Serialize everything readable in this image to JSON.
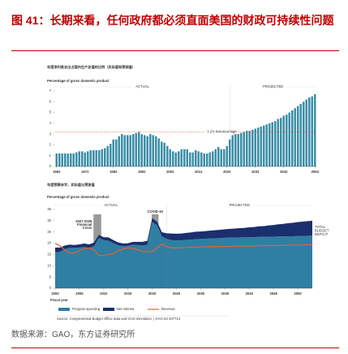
{
  "header": {
    "title": "图 41：长期来看，任何政府都必须直面美国的财政可持续性问题"
  },
  "chart_data": [
    {
      "type": "bar",
      "title": "年度净利息支出占国内生产总值的比例（实际值和预测值）",
      "subtitle": "Percentage of gross domestic product",
      "period_labels": [
        "ACTUAL",
        "PROJECTED"
      ],
      "projection_start": 2023,
      "reference": {
        "value": 3.2,
        "label": "3.2% historical high"
      },
      "color": "#3d8ea8",
      "x": [
        1962,
        1963,
        1964,
        1965,
        1966,
        1967,
        1968,
        1969,
        1970,
        1971,
        1972,
        1973,
        1974,
        1975,
        1976,
        1977,
        1978,
        1979,
        1980,
        1981,
        1982,
        1983,
        1984,
        1985,
        1986,
        1987,
        1988,
        1989,
        1990,
        1991,
        1992,
        1993,
        1994,
        1995,
        1996,
        1997,
        1998,
        1999,
        2000,
        2001,
        2002,
        2003,
        2004,
        2005,
        2006,
        2007,
        2008,
        2009,
        2010,
        2011,
        2012,
        2013,
        2014,
        2015,
        2016,
        2017,
        2018,
        2019,
        2020,
        2021,
        2022,
        2023,
        2024,
        2025,
        2026,
        2027,
        2028,
        2029,
        2030,
        2031,
        2032,
        2033,
        2034,
        2035,
        2036,
        2037,
        2038,
        2039,
        2040,
        2041,
        2042,
        2043,
        2044,
        2045,
        2046,
        2047,
        2048,
        2049,
        2050,
        2051,
        2052,
        2053
      ],
      "values": [
        1.2,
        1.2,
        1.2,
        1.2,
        1.2,
        1.2,
        1.2,
        1.3,
        1.4,
        1.4,
        1.3,
        1.4,
        1.5,
        1.5,
        1.5,
        1.5,
        1.6,
        1.7,
        1.9,
        2.1,
        2.5,
        2.5,
        2.8,
        3.0,
        2.9,
        2.9,
        2.9,
        3.0,
        3.1,
        3.2,
        3.0,
        2.9,
        2.8,
        3.0,
        2.9,
        2.8,
        2.6,
        2.3,
        2.2,
        1.9,
        1.6,
        1.4,
        1.3,
        1.4,
        1.6,
        1.6,
        1.6,
        1.3,
        1.3,
        1.5,
        1.4,
        1.3,
        1.2,
        1.2,
        1.3,
        1.4,
        1.6,
        1.8,
        1.6,
        1.6,
        1.9,
        2.5,
        2.9,
        3.0,
        3.0,
        3.1,
        3.2,
        3.3,
        3.3,
        3.4,
        3.5,
        3.6,
        3.7,
        3.8,
        3.9,
        4.0,
        4.1,
        4.2,
        4.4,
        4.5,
        4.7,
        4.8,
        5.0,
        5.2,
        5.4,
        5.6,
        5.8,
        6.0,
        6.2,
        6.4,
        6.5,
        6.7
      ],
      "xlim": [
        1961.5,
        2053.5
      ],
      "xticks": [
        1962,
        1972,
        1982,
        1992,
        2002,
        2012,
        2022,
        2032,
        2042,
        2053
      ],
      "ylim": [
        0,
        7
      ],
      "yticks": [
        0,
        1,
        2,
        3,
        4,
        5,
        6,
        7
      ]
    },
    {
      "type": "area",
      "title": "年度预算赤字，实际值与预测值",
      "subtitle": "Percentage of gross domestic product",
      "period_labels": [
        "ACTUAL",
        "PROJECTED"
      ],
      "projection_start": 2023,
      "shading": [
        {
          "label": [
            "2007-2009",
            "Financial",
            "Crisis"
          ],
          "start": 2007.9,
          "end": 2009.5
        },
        {
          "label": [
            "COVID-19"
          ],
          "start": 2019.9,
          "end": 2021.3
        }
      ],
      "side_label": [
        "TOTAL",
        "BUDGET",
        "DEFICIT"
      ],
      "x_label": "Fiscal year",
      "source": "Source: Congressional Budget Office data and GAO simulation.  |  GAO-23-107714",
      "x": [
        2000,
        2001,
        2002,
        2003,
        2004,
        2005,
        2006,
        2007,
        2008,
        2009,
        2010,
        2011,
        2012,
        2013,
        2014,
        2015,
        2016,
        2017,
        2018,
        2019,
        2020,
        2021,
        2022,
        2023,
        2024,
        2025,
        2026,
        2027,
        2028,
        2029,
        2030,
        2031,
        2032,
        2033,
        2034,
        2035,
        2036,
        2037,
        2038,
        2039,
        2040,
        2041,
        2042,
        2043,
        2044,
        2045,
        2046,
        2047,
        2048,
        2049,
        2050,
        2051,
        2052,
        2053
      ],
      "series": [
        {
          "name": "Program spending",
          "color": "#2f7fa3",
          "kind": "area",
          "values": [
            15.9,
            16.2,
            17.4,
            18.0,
            17.9,
            18.1,
            18.3,
            17.9,
            18.7,
            22.4,
            21.4,
            21.1,
            20.0,
            19.1,
            18.7,
            18.8,
            19.3,
            19.2,
            19.0,
            19.3,
            29.5,
            28.0,
            23.0,
            21.9,
            21.4,
            21.2,
            21.3,
            21.5,
            21.6,
            21.8,
            21.9,
            22.0,
            22.1,
            22.2,
            22.3,
            22.4,
            22.5,
            22.5,
            22.6,
            22.6,
            22.7,
            22.7,
            22.8,
            22.8,
            22.9,
            22.9,
            23.0,
            23.0,
            23.1,
            23.1,
            23.2,
            23.2,
            23.3,
            23.3
          ]
        },
        {
          "name": "Net interest",
          "color": "#1b2f6e",
          "kind": "area",
          "values": [
            2.2,
            1.9,
            1.6,
            1.4,
            1.3,
            1.4,
            1.6,
            1.6,
            1.6,
            1.3,
            1.3,
            1.5,
            1.4,
            1.3,
            1.2,
            1.2,
            1.3,
            1.4,
            1.6,
            1.8,
            1.6,
            1.6,
            1.9,
            2.5,
            2.9,
            3.0,
            3.0,
            3.1,
            3.2,
            3.3,
            3.3,
            3.4,
            3.5,
            3.6,
            3.7,
            3.8,
            3.9,
            4.0,
            4.1,
            4.2,
            4.4,
            4.5,
            4.7,
            4.8,
            5.0,
            5.2,
            5.4,
            5.6,
            5.8,
            6.0,
            6.2,
            6.4,
            6.5,
            6.7
          ]
        },
        {
          "name": "Revenue",
          "color": "#e8612c",
          "kind": "line",
          "values": [
            20.0,
            18.8,
            17.0,
            15.7,
            15.6,
            16.7,
            17.6,
            17.9,
            17.1,
            14.6,
            14.6,
            15.0,
            15.3,
            16.7,
            17.4,
            18.0,
            17.6,
            17.2,
            16.3,
            16.3,
            16.2,
            17.9,
            19.6,
            18.4,
            18.0,
            17.9,
            18.0,
            18.1,
            18.2,
            18.3,
            18.3,
            18.4,
            18.4,
            18.5,
            18.5,
            18.6,
            18.6,
            18.7,
            18.7,
            18.8,
            18.8,
            18.8,
            18.9,
            18.9,
            19.0,
            19.0,
            19.0,
            19.1,
            19.1,
            19.2,
            19.2,
            19.2,
            19.3,
            19.3
          ]
        }
      ],
      "xlim": [
        2000,
        2053
      ],
      "xticks": [
        2000,
        2005,
        2010,
        2015,
        2020,
        2025,
        2030,
        2035,
        2040,
        2045,
        2050
      ],
      "ylim": [
        0,
        35
      ],
      "yticks": [
        0,
        5,
        10,
        15,
        20,
        25,
        30,
        35
      ]
    }
  ],
  "footer": {
    "source": "数据来源：GAO，东方证券研究所"
  }
}
